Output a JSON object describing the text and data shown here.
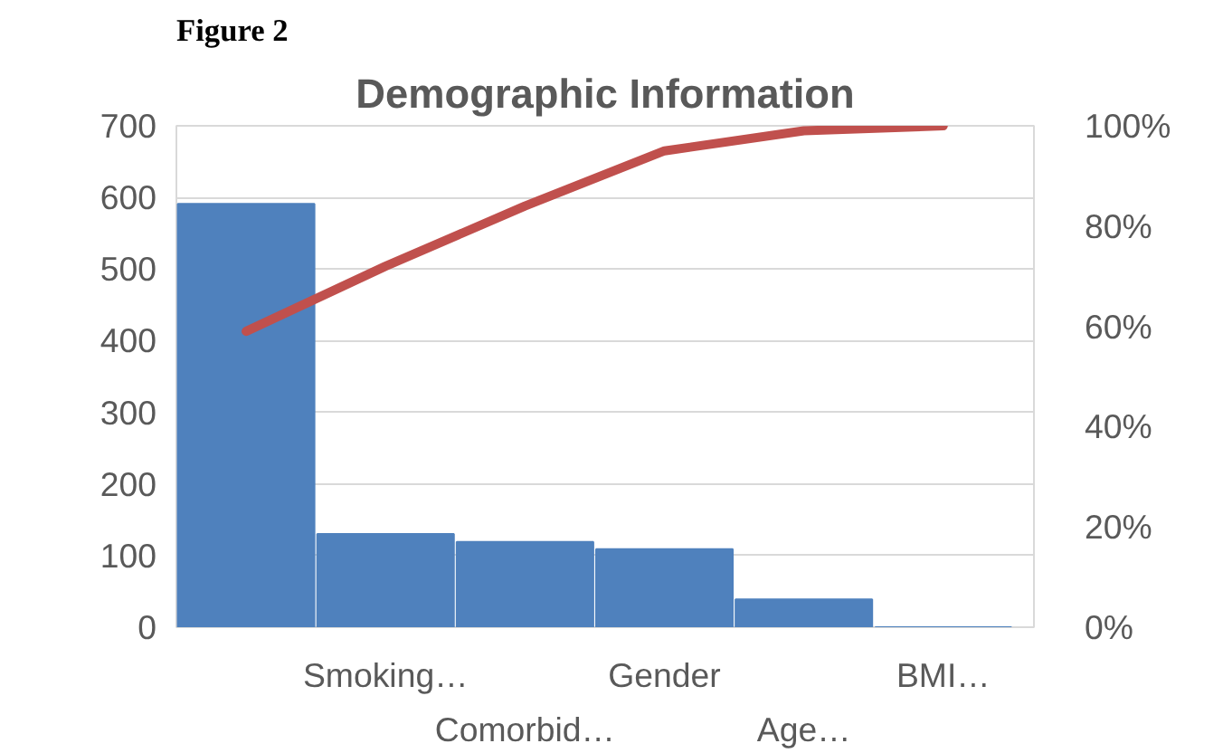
{
  "chart_data": {
    "type": "bar",
    "title": "Demographic Information",
    "annotations": [
      "Figure 2"
    ],
    "categories": [
      null,
      "Smoking…",
      "Comorbid…",
      "Gender",
      "Age…",
      "BMI…"
    ],
    "series": [
      {
        "color": "#4f81bd",
        "values": [
          591,
          130,
          119,
          109,
          39,
          0
        ]
      },
      {
        "type": "line",
        "axis": "y2",
        "color": "#c0504d",
        "values": [
          59,
          72,
          84,
          95,
          99,
          100
        ]
      }
    ],
    "ylim": [
      0,
      700
    ],
    "yticks": [
      0,
      100,
      200,
      300,
      400,
      500,
      600,
      700
    ],
    "y2lim": [
      0,
      100
    ],
    "y2ticks": [
      {
        "value": 0,
        "label": "0%"
      },
      {
        "value": 20,
        "label": "20%"
      },
      {
        "value": 40,
        "label": "40%"
      },
      {
        "value": 60,
        "label": "60%"
      },
      {
        "value": 80,
        "label": "80%"
      },
      {
        "value": 100,
        "label": "100%"
      }
    ],
    "grid": "y"
  }
}
